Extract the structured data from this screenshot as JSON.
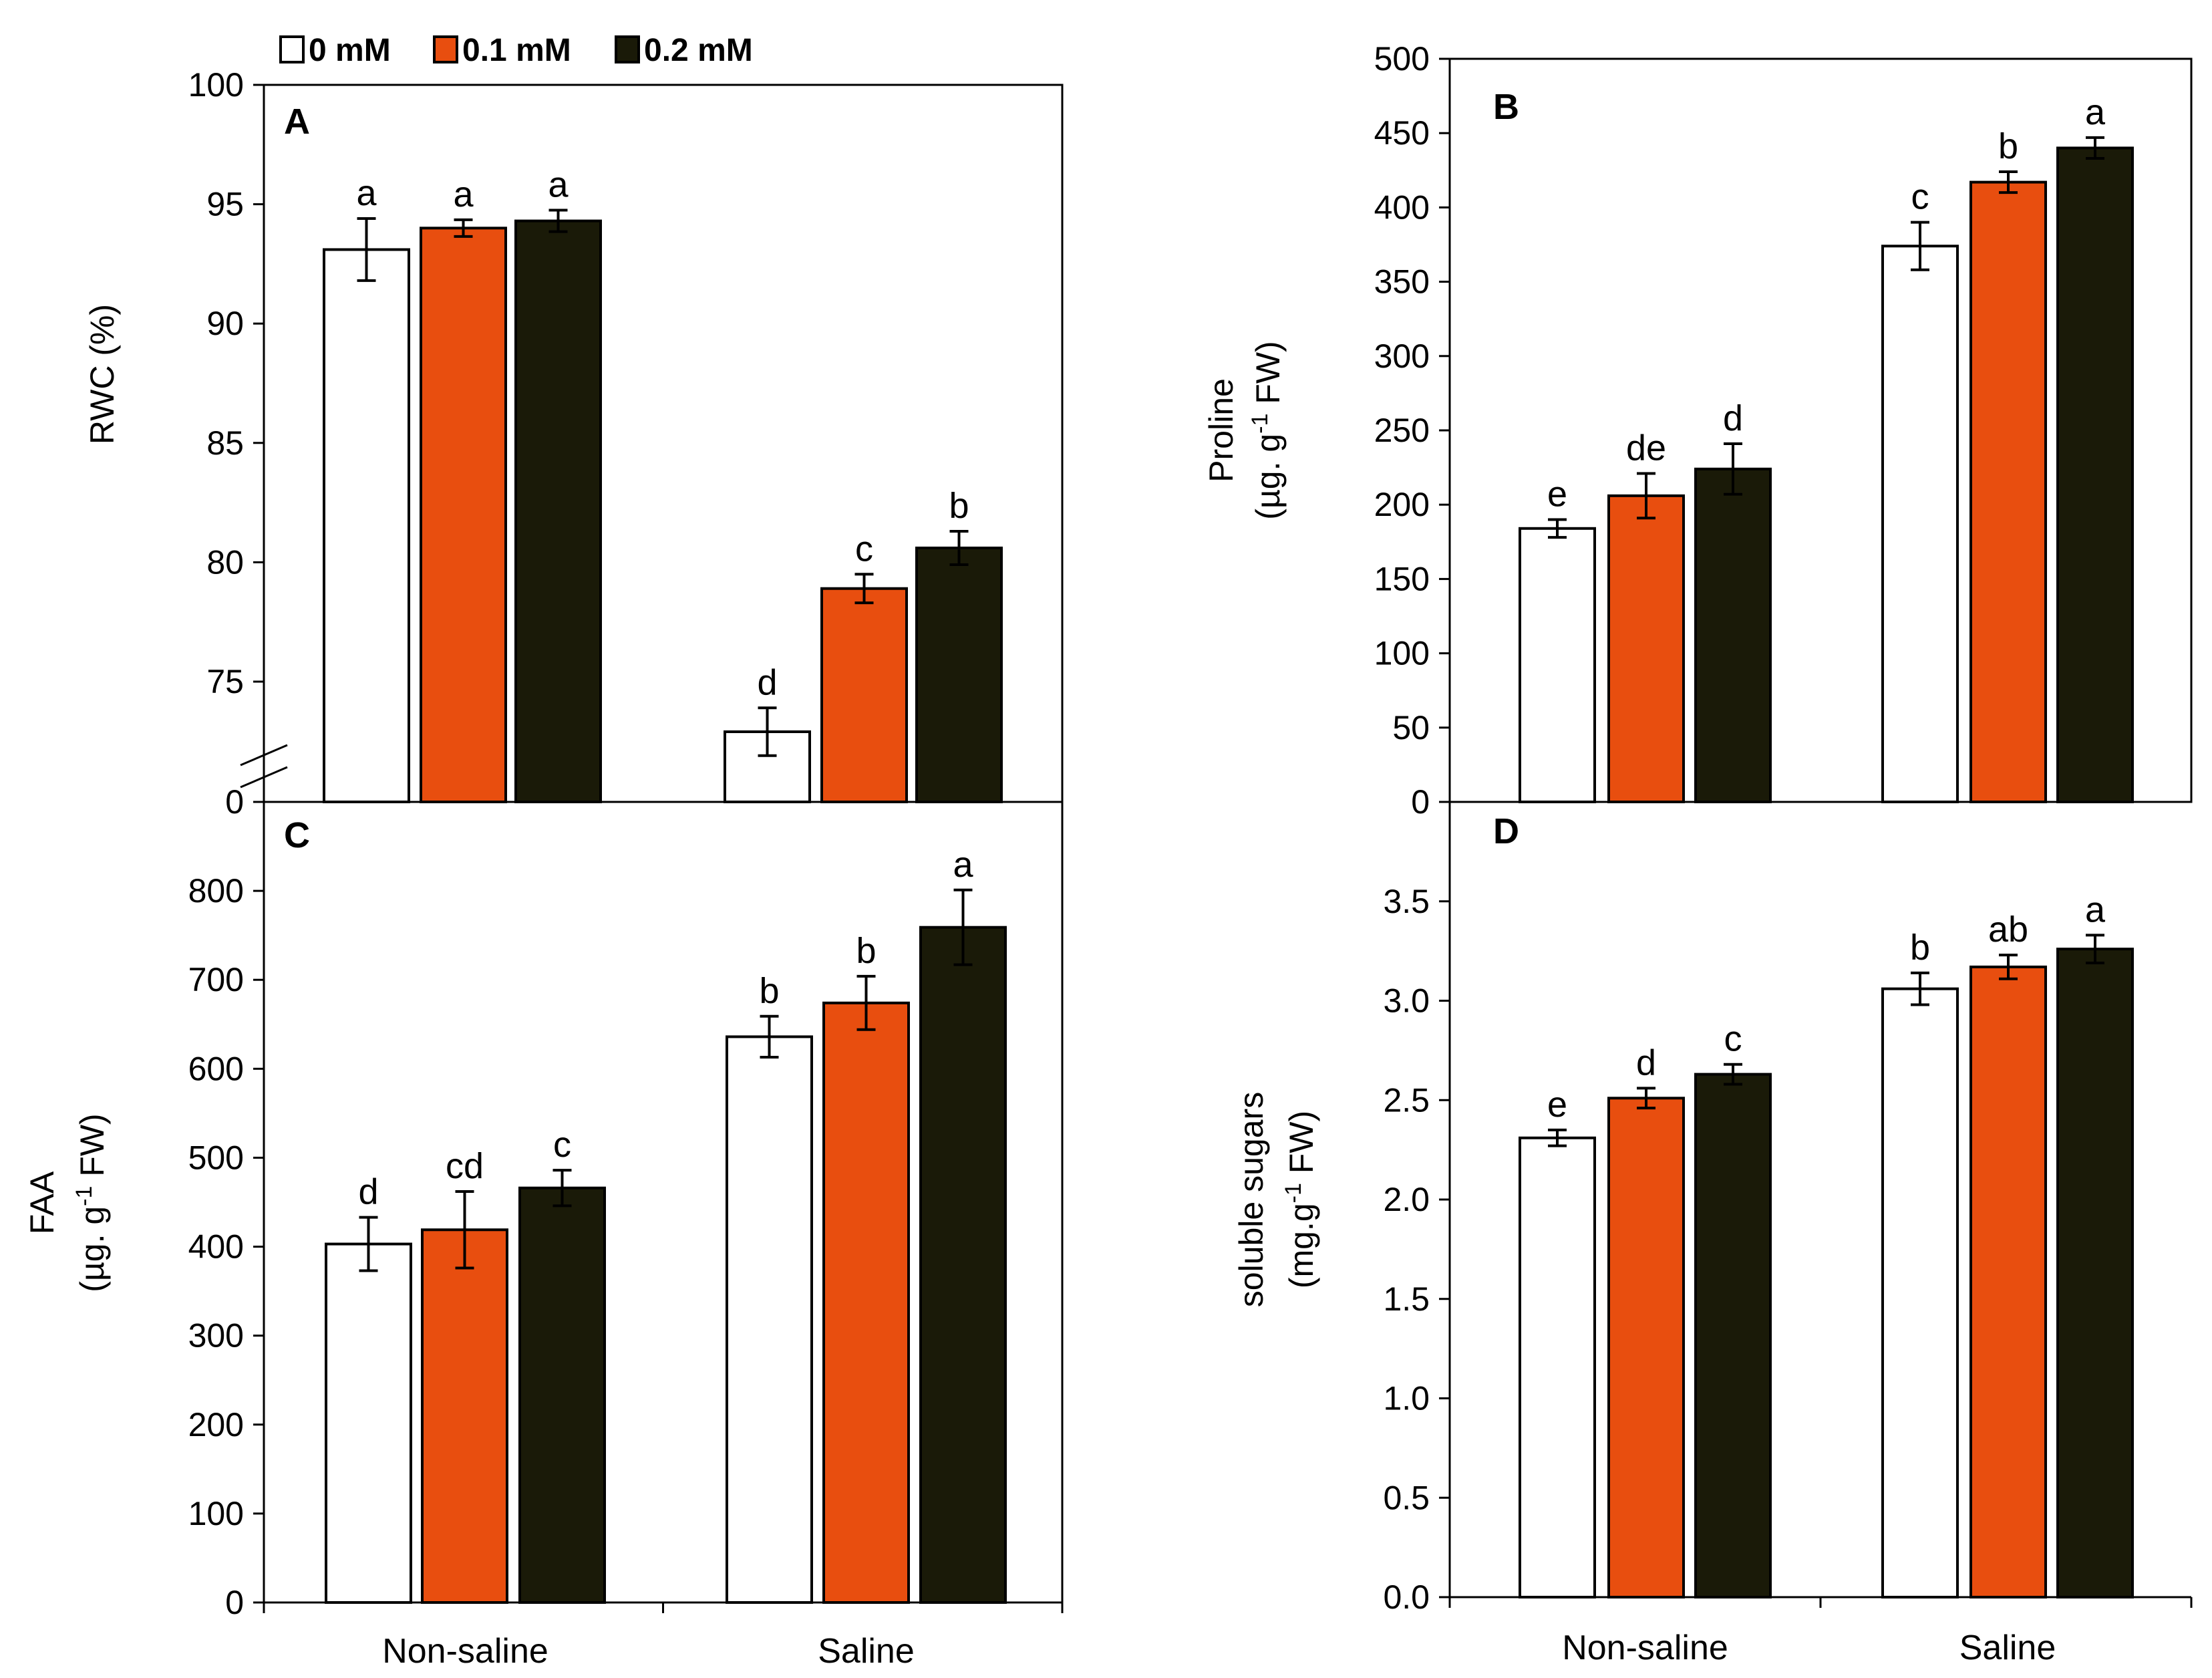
{
  "colors": {
    "s0": "#ffffff",
    "s1": "#e84e0f",
    "s2": "#1a1a08",
    "stroke": "#000000"
  },
  "legend": {
    "series": [
      "0 mM",
      "0.1 mM",
      "0.2 mM"
    ]
  },
  "chart_data": [
    {
      "panel": "A",
      "type": "bar",
      "categories": [
        "Non-saline",
        "Saline"
      ],
      "ylabel": "RWC (%)",
      "ylim": [
        70,
        100
      ],
      "axis_break": true,
      "yticks": [
        0,
        75,
        80,
        85,
        90,
        95,
        100
      ],
      "series": [
        {
          "name": "0 mM",
          "values": [
            93.1,
            72.9
          ],
          "errors": [
            1.3,
            1.0
          ],
          "letters": [
            "a",
            "d"
          ]
        },
        {
          "name": "0.1 mM",
          "values": [
            94.0,
            78.9
          ],
          "errors": [
            0.35,
            0.6
          ],
          "letters": [
            "a",
            "c"
          ]
        },
        {
          "name": "0.2 mM",
          "values": [
            94.3,
            80.6
          ],
          "errors": [
            0.45,
            0.7
          ],
          "letters": [
            "a",
            "b"
          ]
        }
      ]
    },
    {
      "panel": "B",
      "type": "bar",
      "categories": [
        "Non-saline",
        "Saline"
      ],
      "ylabel": "Proline",
      "ylabel2": "(µg. g-1 FW)",
      "ylim": [
        0,
        500
      ],
      "yticks": [
        0,
        50,
        100,
        150,
        200,
        250,
        300,
        350,
        400,
        450,
        500
      ],
      "series": [
        {
          "name": "0 mM",
          "values": [
            184,
            374
          ],
          "errors": [
            6,
            16
          ],
          "letters": [
            "e",
            "c"
          ]
        },
        {
          "name": "0.1 mM",
          "values": [
            206,
            417
          ],
          "errors": [
            15,
            7
          ],
          "letters": [
            "de",
            "b"
          ]
        },
        {
          "name": "0.2 mM",
          "values": [
            224,
            440
          ],
          "errors": [
            17,
            7
          ],
          "letters": [
            "d",
            "a"
          ]
        }
      ]
    },
    {
      "panel": "C",
      "type": "bar",
      "categories": [
        "Non-saline",
        "Saline"
      ],
      "ylabel": "FAA",
      "ylabel2": "(µg. g-1 FW)",
      "ylim": [
        0,
        900
      ],
      "yticks": [
        0,
        100,
        200,
        300,
        400,
        500,
        600,
        700,
        800
      ],
      "series": [
        {
          "name": "0 mM",
          "values": [
            403,
            636
          ],
          "errors": [
            30,
            23
          ],
          "letters": [
            "d",
            "b"
          ]
        },
        {
          "name": "0.1 mM",
          "values": [
            419,
            674
          ],
          "errors": [
            43,
            30
          ],
          "letters": [
            "cd",
            "b"
          ]
        },
        {
          "name": "0.2 mM",
          "values": [
            466,
            759
          ],
          "errors": [
            20,
            42
          ],
          "letters": [
            "c",
            "a"
          ]
        }
      ]
    },
    {
      "panel": "D",
      "type": "bar",
      "categories": [
        "Non-saline",
        "Saline"
      ],
      "ylabel": "soluble sugars",
      "ylabel2": "(mg.g-1 FW)",
      "ylim": [
        0,
        4.0
      ],
      "yticks": [
        "0.0",
        "0.5",
        "1.0",
        "1.5",
        "2.0",
        "2.5",
        "3.0",
        "3.5"
      ],
      "series": [
        {
          "name": "0 mM",
          "values": [
            2.31,
            3.06
          ],
          "errors": [
            0.04,
            0.08
          ],
          "letters": [
            "e",
            "b"
          ]
        },
        {
          "name": "0.1 mM",
          "values": [
            2.51,
            3.17
          ],
          "errors": [
            0.05,
            0.06
          ],
          "letters": [
            "d",
            "ab"
          ]
        },
        {
          "name": "0.2 mM",
          "values": [
            2.63,
            3.26
          ],
          "errors": [
            0.05,
            0.07
          ],
          "letters": [
            "c",
            "a"
          ]
        }
      ]
    }
  ]
}
